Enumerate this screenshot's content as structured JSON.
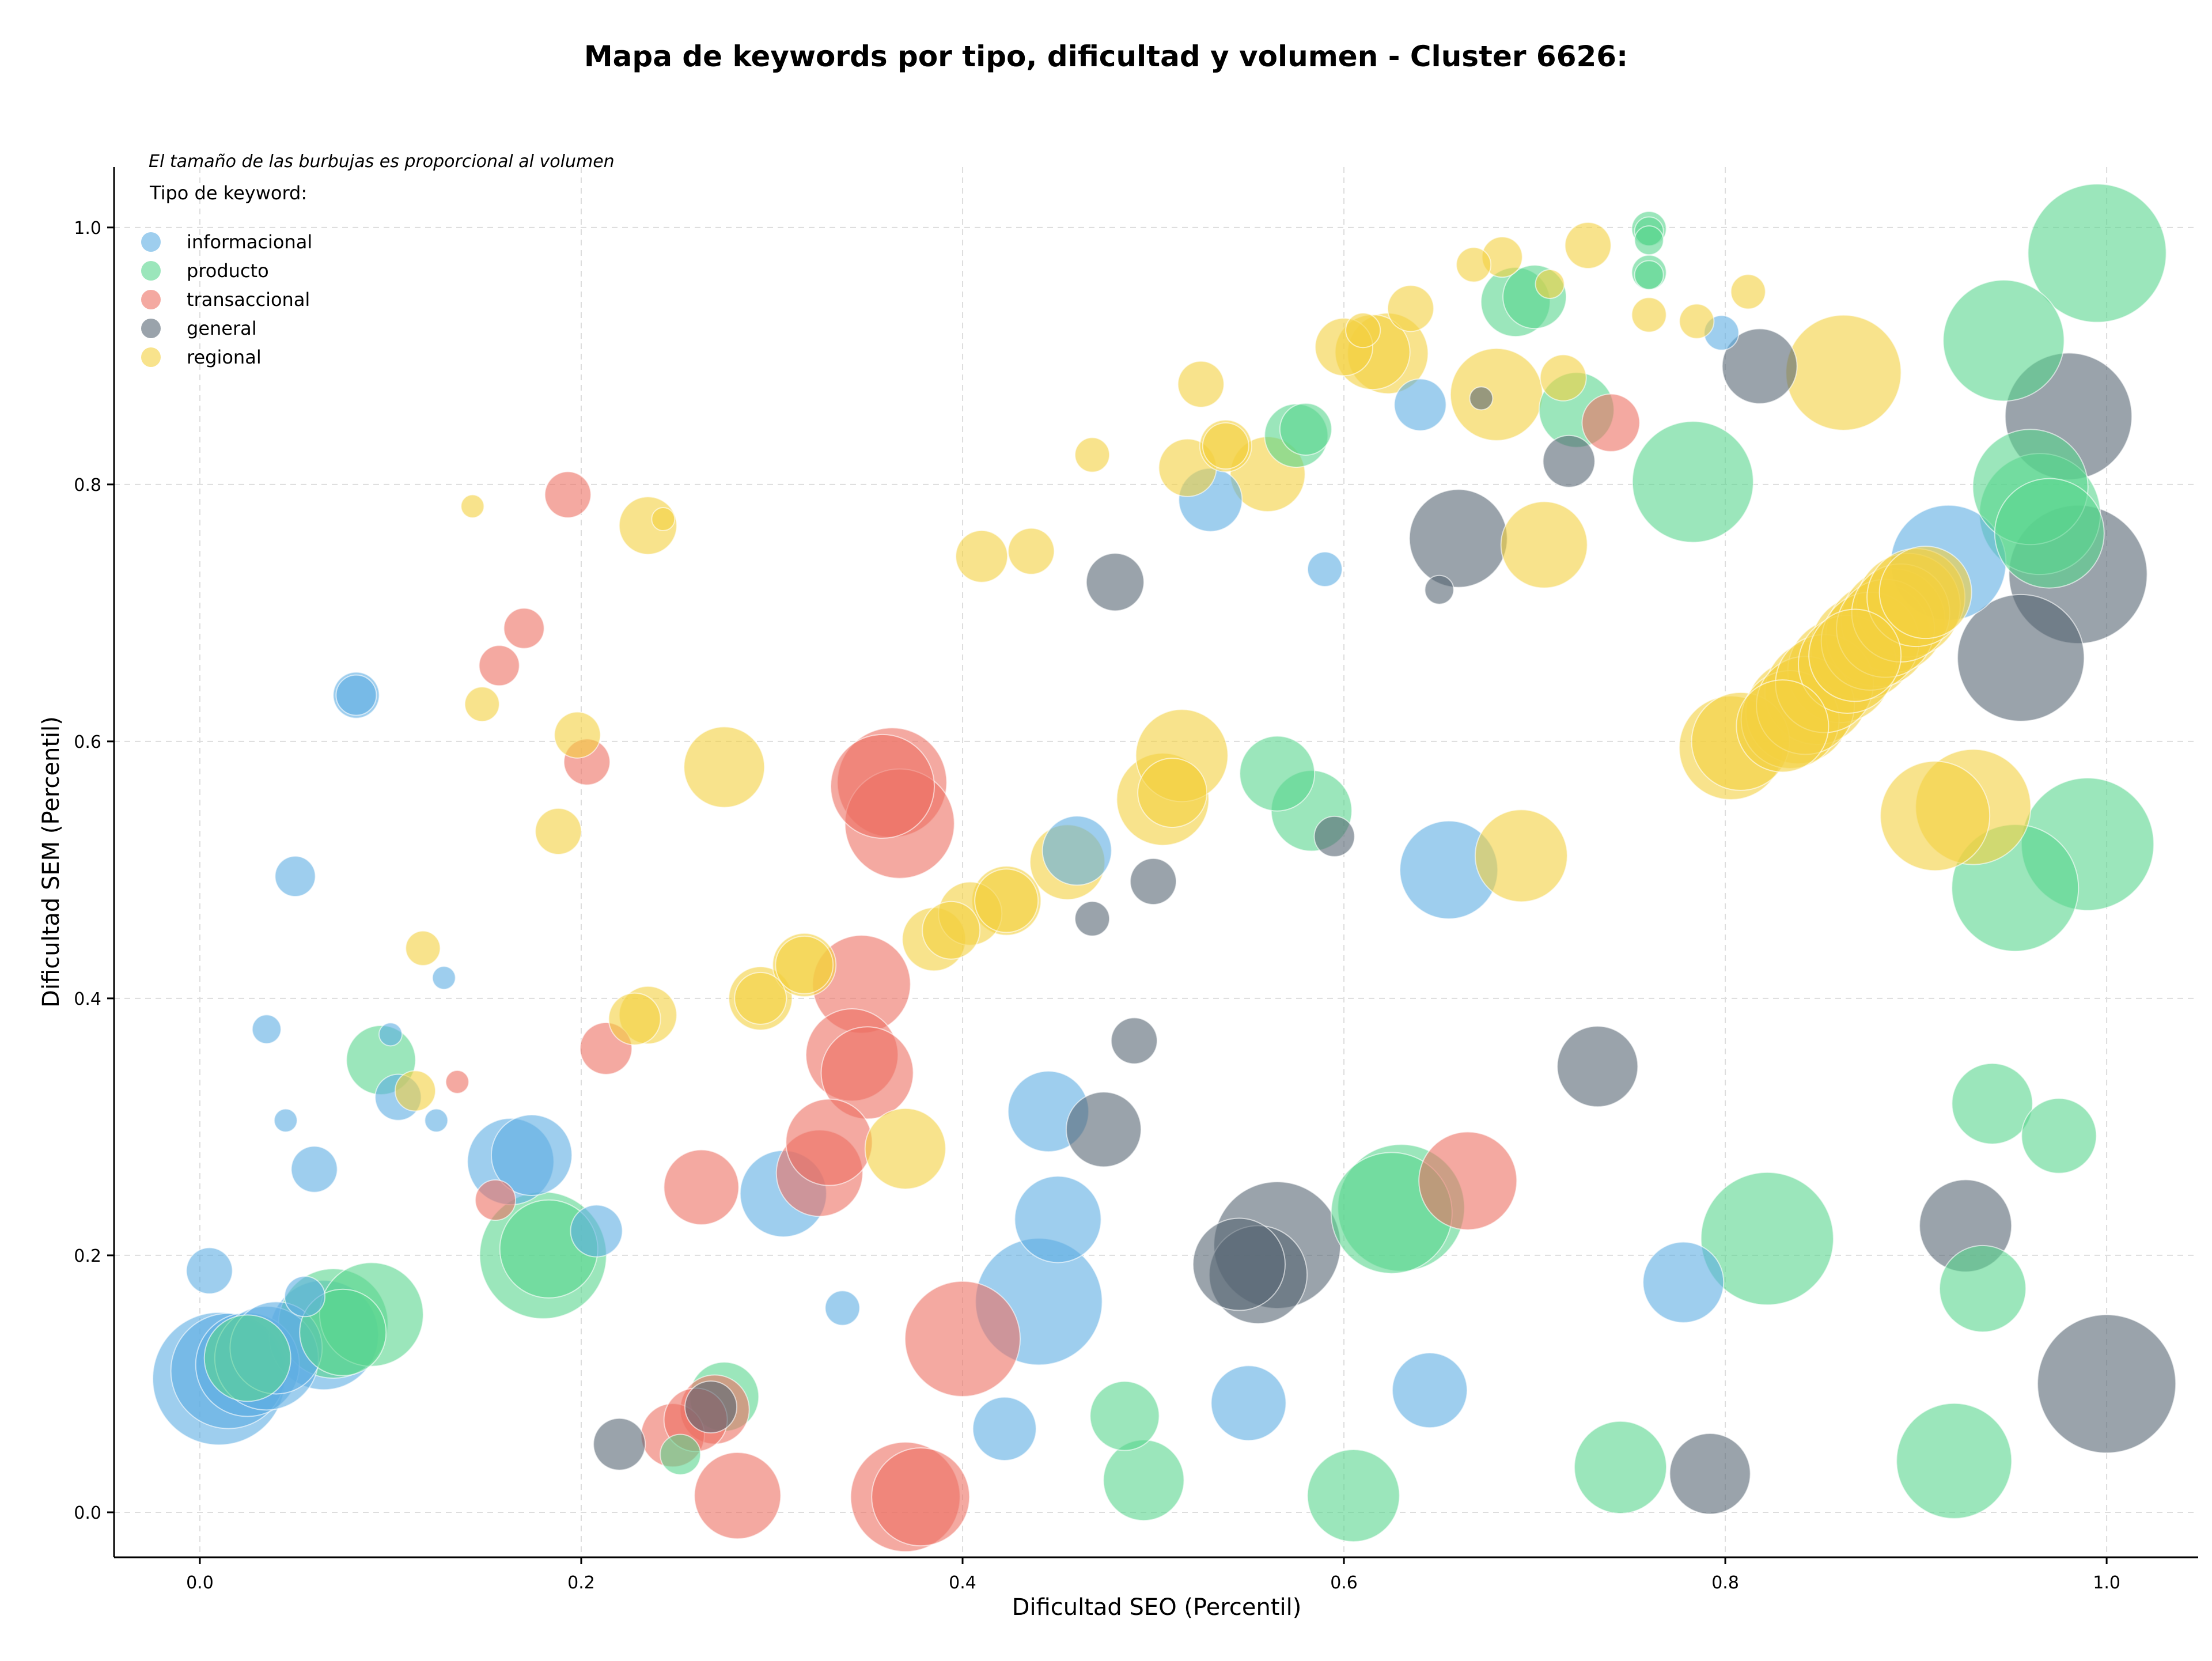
{
  "chart_data": {
    "type": "scatter",
    "title": "Mapa de keywords por tipo, dificultad y volumen - Cluster 6626:",
    "xlabel": "Dificultad SEO (Percentil)",
    "ylabel": "Dificultad SEM (Percentil)",
    "xlim": [
      -0.045,
      1.048
    ],
    "ylim": [
      -0.035,
      1.047
    ],
    "xticks": [
      "0.0",
      "0.2",
      "0.4",
      "0.6",
      "0.8",
      "1.0"
    ],
    "yticks": [
      "0.0",
      "0.2",
      "0.4",
      "0.6",
      "0.8",
      "1.0"
    ],
    "grid": true,
    "note": "El tamaño de las burbujas es proporcional al volumen",
    "legend_title": "Tipo de keyword:",
    "legend_position": "top-left",
    "series": [
      {
        "name": "informacional",
        "color": "#5dade2",
        "points": [
          [
            0.01,
            0.104,
            2.3
          ],
          [
            0.015,
            0.11,
            2
          ],
          [
            0.025,
            0.115,
            1.8
          ],
          [
            0.035,
            0.12,
            1.8
          ],
          [
            0.04,
            0.128,
            1.6
          ],
          [
            0.065,
            0.138,
            1.9
          ],
          [
            0.005,
            0.188,
            0.8
          ],
          [
            0.055,
            0.168,
            0.7
          ],
          [
            0.06,
            0.267,
            0.8
          ],
          [
            0.035,
            0.376,
            0.5
          ],
          [
            0.045,
            0.305,
            0.4
          ],
          [
            0.05,
            0.495,
            0.7
          ],
          [
            0.082,
            0.636,
            0.8
          ],
          [
            0.082,
            0.636,
            0.7
          ],
          [
            0.1,
            0.372,
            0.4
          ],
          [
            0.104,
            0.323,
            0.8
          ],
          [
            0.124,
            0.305,
            0.4
          ],
          [
            0.128,
            0.416,
            0.4
          ],
          [
            0.163,
            0.273,
            1.5
          ],
          [
            0.174,
            0.278,
            1.4
          ],
          [
            0.208,
            0.219,
            0.9
          ],
          [
            0.306,
            0.248,
            1.5
          ],
          [
            0.337,
            0.159,
            0.6
          ],
          [
            0.422,
            0.065,
            1.1
          ],
          [
            0.44,
            0.164,
            2.2
          ],
          [
            0.445,
            0.312,
            1.4
          ],
          [
            0.45,
            0.228,
            1.5
          ],
          [
            0.46,
            0.515,
            1.2
          ],
          [
            0.53,
            0.788,
            1.1
          ],
          [
            0.55,
            0.085,
            1.3
          ],
          [
            0.59,
            0.734,
            0.6
          ],
          [
            0.64,
            0.862,
            0.9
          ],
          [
            0.645,
            0.095,
            1.3
          ],
          [
            0.655,
            0.5,
            1.7
          ],
          [
            0.778,
            0.179,
            1.4
          ],
          [
            0.798,
            0.918,
            0.6
          ],
          [
            0.917,
            0.739,
            2
          ]
        ]
      },
      {
        "name": "producto",
        "color": "#58d68d",
        "points": [
          [
            0.025,
            0.12,
            1.5
          ],
          [
            0.07,
            0.147,
            1.9
          ],
          [
            0.075,
            0.14,
            1.5
          ],
          [
            0.09,
            0.154,
            1.8
          ],
          [
            0.095,
            0.352,
            1.2
          ],
          [
            0.18,
            0.2,
            2.2
          ],
          [
            0.183,
            0.205,
            1.7
          ],
          [
            0.252,
            0.045,
            0.7
          ],
          [
            0.275,
            0.09,
            1.2
          ],
          [
            0.485,
            0.075,
            1.2
          ],
          [
            0.495,
            0.025,
            1.4
          ],
          [
            0.565,
            0.575,
            1.3
          ],
          [
            0.575,
            0.838,
            1.1
          ],
          [
            0.58,
            0.843,
            0.9
          ],
          [
            0.583,
            0.546,
            1.4
          ],
          [
            0.605,
            0.013,
            1.6
          ],
          [
            0.625,
            0.233,
            2.1
          ],
          [
            0.63,
            0.237,
            2.2
          ],
          [
            0.69,
            0.942,
            1.2
          ],
          [
            0.7,
            0.946,
            1.1
          ],
          [
            0.722,
            0.858,
            1.3
          ],
          [
            0.76,
            0.999,
            0.6
          ],
          [
            0.76,
            0.997,
            0.5
          ],
          [
            0.76,
            0.99,
            0.5
          ],
          [
            0.76,
            0.965,
            0.6
          ],
          [
            0.76,
            0.963,
            0.5
          ],
          [
            0.745,
            0.035,
            1.6
          ],
          [
            0.783,
            0.802,
            2.1
          ],
          [
            0.822,
            0.213,
            2.3
          ],
          [
            0.92,
            0.04,
            2
          ],
          [
            0.935,
            0.174,
            1.5
          ],
          [
            0.94,
            0.318,
            1.4
          ],
          [
            0.946,
            0.912,
            2.1
          ],
          [
            0.952,
            0.486,
            2.2
          ],
          [
            0.96,
            0.798,
            2
          ],
          [
            0.965,
            0.777,
            2.1
          ],
          [
            0.97,
            0.762,
            1.9
          ],
          [
            0.975,
            0.293,
            1.3
          ],
          [
            0.99,
            0.52,
            2.3
          ],
          [
            0.995,
            0.98,
            2.4
          ]
        ]
      },
      {
        "name": "transaccional",
        "color": "#ec7063",
        "points": [
          [
            0.135,
            0.335,
            0.4
          ],
          [
            0.155,
            0.243,
            0.7
          ],
          [
            0.157,
            0.659,
            0.7
          ],
          [
            0.17,
            0.688,
            0.7
          ],
          [
            0.193,
            0.792,
            0.8
          ],
          [
            0.203,
            0.584,
            0.8
          ],
          [
            0.213,
            0.361,
            0.9
          ],
          [
            0.248,
            0.06,
            1.1
          ],
          [
            0.26,
            0.072,
            1.1
          ],
          [
            0.263,
            0.253,
            1.3
          ],
          [
            0.27,
            0.08,
            1.2
          ],
          [
            0.282,
            0.013,
            1.5
          ],
          [
            0.325,
            0.264,
            1.5
          ],
          [
            0.33,
            0.288,
            1.5
          ],
          [
            0.342,
            0.356,
            1.6
          ],
          [
            0.347,
            0.411,
            1.7
          ],
          [
            0.35,
            0.342,
            1.6
          ],
          [
            0.358,
            0.565,
            1.8
          ],
          [
            0.363,
            0.568,
            1.9
          ],
          [
            0.367,
            0.536,
            1.9
          ],
          [
            0.37,
            0.012,
            1.9
          ],
          [
            0.378,
            0.012,
            1.7
          ],
          [
            0.4,
            0.135,
            2
          ],
          [
            0.665,
            0.258,
            1.7
          ],
          [
            0.74,
            0.848,
            1
          ]
        ]
      },
      {
        "name": "general",
        "color": "#566573",
        "points": [
          [
            0.22,
            0.053,
            0.9
          ],
          [
            0.268,
            0.082,
            0.9
          ],
          [
            0.474,
            0.298,
            1.3
          ],
          [
            0.468,
            0.462,
            0.6
          ],
          [
            0.48,
            0.724,
            1
          ],
          [
            0.49,
            0.367,
            0.8
          ],
          [
            0.5,
            0.491,
            0.8
          ],
          [
            0.545,
            0.193,
            1.6
          ],
          [
            0.555,
            0.185,
            1.7
          ],
          [
            0.565,
            0.208,
            2.2
          ],
          [
            0.595,
            0.526,
            0.7
          ],
          [
            0.65,
            0.718,
            0.5
          ],
          [
            0.66,
            0.758,
            1.7
          ],
          [
            0.672,
            0.867,
            0.4
          ],
          [
            0.718,
            0.818,
            0.9
          ],
          [
            0.733,
            0.347,
            1.4
          ],
          [
            0.792,
            0.03,
            1.4
          ],
          [
            0.818,
            0.892,
            1.3
          ],
          [
            0.926,
            0.223,
            1.6
          ],
          [
            0.955,
            0.665,
            2.2
          ],
          [
            0.98,
            0.853,
            2.2
          ],
          [
            0.985,
            0.73,
            2.4
          ],
          [
            1.0,
            0.1,
            2.4
          ]
        ]
      },
      {
        "name": "regional",
        "color": "#f4d03f",
        "points": [
          [
            0.113,
            0.328,
            0.7
          ],
          [
            0.117,
            0.439,
            0.6
          ],
          [
            0.143,
            0.783,
            0.4
          ],
          [
            0.148,
            0.629,
            0.6
          ],
          [
            0.188,
            0.53,
            0.8
          ],
          [
            0.198,
            0.605,
            0.8
          ],
          [
            0.228,
            0.384,
            0.9
          ],
          [
            0.235,
            0.387,
            1
          ],
          [
            0.235,
            0.768,
            1
          ],
          [
            0.243,
            0.773,
            0.4
          ],
          [
            0.275,
            0.58,
            1.4
          ],
          [
            0.294,
            0.4,
            1.1
          ],
          [
            0.294,
            0.4,
            0.9
          ],
          [
            0.317,
            0.426,
            1.1
          ],
          [
            0.317,
            0.426,
            1
          ],
          [
            0.37,
            0.283,
            1.4
          ],
          [
            0.385,
            0.446,
            1.1
          ],
          [
            0.394,
            0.453,
            1
          ],
          [
            0.404,
            0.466,
            1.1
          ],
          [
            0.41,
            0.744,
            0.9
          ],
          [
            0.423,
            0.476,
            1.2
          ],
          [
            0.423,
            0.476,
            1.1
          ],
          [
            0.436,
            0.748,
            0.8
          ],
          [
            0.455,
            0.506,
            1.3
          ],
          [
            0.468,
            0.823,
            0.6
          ],
          [
            0.505,
            0.555,
            1.6
          ],
          [
            0.515,
            0.589,
            1.6
          ],
          [
            0.51,
            0.56,
            1.2
          ],
          [
            0.518,
            0.813,
            1
          ],
          [
            0.525,
            0.878,
            0.8
          ],
          [
            0.538,
            0.83,
            0.8
          ],
          [
            0.538,
            0.83,
            0.9
          ],
          [
            0.56,
            0.808,
            1.3
          ],
          [
            0.6,
            0.907,
            1
          ],
          [
            0.61,
            0.92,
            0.6
          ],
          [
            0.615,
            0.903,
            1.3
          ],
          [
            0.623,
            0.902,
            1.4
          ],
          [
            0.635,
            0.937,
            0.8
          ],
          [
            0.668,
            0.971,
            0.6
          ],
          [
            0.683,
            0.977,
            0.7
          ],
          [
            0.68,
            0.87,
            1.6
          ],
          [
            0.705,
            0.753,
            1.5
          ],
          [
            0.708,
            0.956,
            0.5
          ],
          [
            0.693,
            0.511,
            1.6
          ],
          [
            0.715,
            0.883,
            0.8
          ],
          [
            0.728,
            0.986,
            0.8
          ],
          [
            0.76,
            0.932,
            0.6
          ],
          [
            0.785,
            0.927,
            0.6
          ],
          [
            0.812,
            0.95,
            0.6
          ],
          [
            0.803,
            0.595,
            1.8
          ],
          [
            0.808,
            0.6,
            1.7
          ],
          [
            0.83,
            0.612,
            1.6
          ],
          [
            0.834,
            0.617,
            1.7
          ],
          [
            0.838,
            0.623,
            1.8
          ],
          [
            0.842,
            0.628,
            1.7
          ],
          [
            0.848,
            0.638,
            1.8
          ],
          [
            0.852,
            0.645,
            1.7
          ],
          [
            0.86,
            0.655,
            1.8
          ],
          [
            0.864,
            0.66,
            1.7
          ],
          [
            0.868,
            0.667,
            1.6
          ],
          [
            0.872,
            0.673,
            1.8
          ],
          [
            0.876,
            0.678,
            1.7
          ],
          [
            0.88,
            0.683,
            1.8
          ],
          [
            0.884,
            0.688,
            1.7
          ],
          [
            0.888,
            0.694,
            1.8
          ],
          [
            0.892,
            0.7,
            1.7
          ],
          [
            0.896,
            0.706,
            1.8
          ],
          [
            0.9,
            0.712,
            1.7
          ],
          [
            0.905,
            0.716,
            1.6
          ],
          [
            0.862,
            0.887,
            2
          ],
          [
            0.91,
            0.542,
            1.9
          ],
          [
            0.93,
            0.549,
            2
          ]
        ]
      }
    ]
  }
}
